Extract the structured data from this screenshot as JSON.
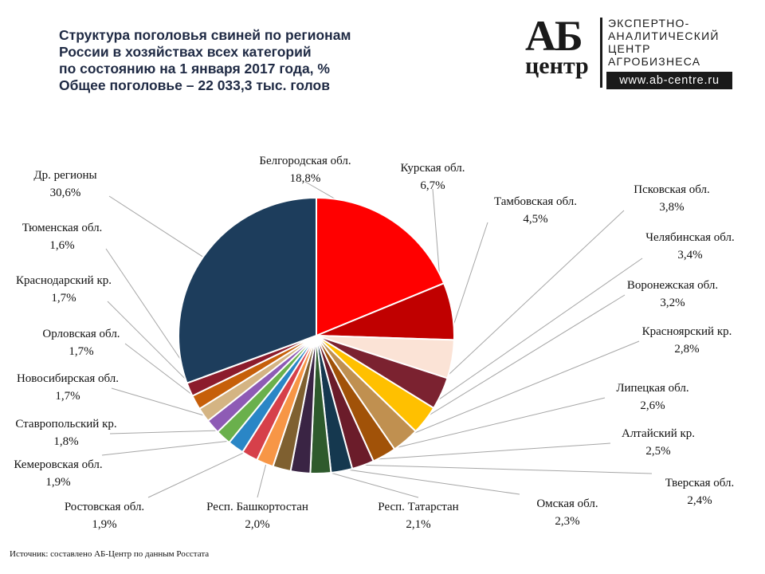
{
  "title_lines": [
    "Структура поголовья свиней по регионам",
    "России в хозяйствах всех категорий",
    "по состоянию на 1 января 2017 года, %",
    "Общее поголовье – 22 033,3 тыс. голов"
  ],
  "logo": {
    "ab": "АБ",
    "centr": "центр",
    "lines": [
      "ЭКСПЕРТНО-",
      "АНАЛИТИЧЕСКИЙ",
      "ЦЕНТР",
      "АГРОБИЗНЕСА"
    ],
    "url": "www.ab-centre.ru"
  },
  "source": "Источник: составлено АБ-Центр по данным Росстата",
  "chart_data": {
    "type": "pie",
    "title": "Структура поголовья свиней по регионам России в хозяйствах всех категорий по состоянию на 1 января 2017 года, %",
    "unit": "%",
    "start": "12 o'clock",
    "direction": "clockwise",
    "slices": [
      {
        "name": "Белгородская обл.",
        "value": 18.8,
        "label": "18,8%",
        "color": "#ff0000"
      },
      {
        "name": "Курская обл.",
        "value": 6.7,
        "label": "6,7%",
        "color": "#c00000"
      },
      {
        "name": "Тамбовская обл.",
        "value": 4.5,
        "label": "4,5%",
        "color": "#fbe3d6"
      },
      {
        "name": "Псковская обл.",
        "value": 3.8,
        "label": "3,8%",
        "color": "#7b2230"
      },
      {
        "name": "Челябинская обл.",
        "value": 3.4,
        "label": "3,4%",
        "color": "#ffc000"
      },
      {
        "name": "Воронежская обл.",
        "value": 3.2,
        "label": "3,2%",
        "color": "#c09050"
      },
      {
        "name": "Красноярский кр.",
        "value": 2.8,
        "label": "2,8%",
        "color": "#a15208"
      },
      {
        "name": "Липецкая обл.",
        "value": 2.6,
        "label": "2,6%",
        "color": "#6b1c2a"
      },
      {
        "name": "Алтайский кр.",
        "value": 2.5,
        "label": "2,5%",
        "color": "#15384f"
      },
      {
        "name": "Тверская обл.",
        "value": 2.4,
        "label": "2,4%",
        "color": "#2e5a2c"
      },
      {
        "name": "Омская обл.",
        "value": 2.3,
        "label": "2,3%",
        "color": "#3a2444"
      },
      {
        "name": "Респ. Татарстан",
        "value": 2.1,
        "label": "2,1%",
        "color": "#7f6030"
      },
      {
        "name": "Респ. Башкортостан",
        "value": 2.0,
        "label": "2,0%",
        "color": "#f79646"
      },
      {
        "name": "Ростовская обл.",
        "value": 1.9,
        "label": "1,9%",
        "color": "#d6404a"
      },
      {
        "name": "Кемеровская обл.",
        "value": 1.9,
        "label": "1,9%",
        "color": "#2a86c6"
      },
      {
        "name": "Ставропольский кр.",
        "value": 1.8,
        "label": "1,8%",
        "color": "#6ab04c"
      },
      {
        "name": "Новосибирская обл.",
        "value": 1.7,
        "label": "1,7%",
        "color": "#8e5bb5"
      },
      {
        "name": "Орловская обл.",
        "value": 1.7,
        "label": "1,7%",
        "color": "#d4b483"
      },
      {
        "name": "Краснодарский кр.",
        "value": 1.7,
        "label": "1,7%",
        "color": "#c65f0a"
      },
      {
        "name": "Тюменская обл.",
        "value": 1.6,
        "label": "1,6%",
        "color": "#8c1c2c"
      },
      {
        "name": "Др. регионы",
        "value": 30.6,
        "label": "30,6%",
        "color": "#1d3d5c"
      }
    ]
  }
}
